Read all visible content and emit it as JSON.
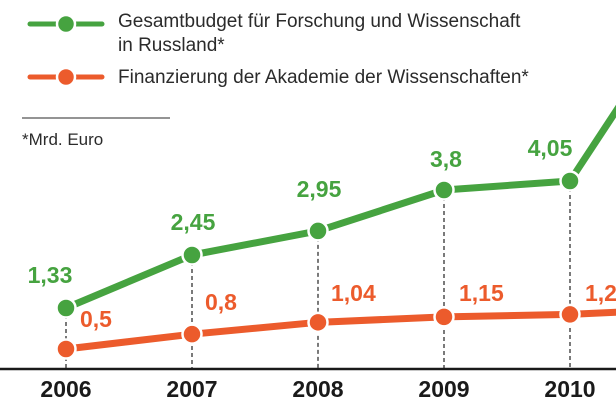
{
  "chart_data": {
    "type": "line",
    "unit_note": "*Mrd. Euro",
    "x": [
      "2006",
      "2007",
      "2008",
      "2009",
      "2010"
    ],
    "series": [
      {
        "name_lines": [
          "Gesamtbudget für Forschung und Wissenschaft",
          "in Russland*"
        ],
        "color": "#46a340",
        "values": [
          1.33,
          2.45,
          2.95,
          3.8,
          4.05
        ],
        "labels": [
          "1,33",
          "2,45",
          "2,95",
          "3,8",
          "4,05"
        ],
        "continues_after_last": true
      },
      {
        "name_lines": [
          "Finanzierung der Akademie der Wissenschaften*"
        ],
        "color": "#ec5b2c",
        "values": [
          0.5,
          0.8,
          1.04,
          1.15,
          1.2
        ],
        "labels": [
          "0,5",
          "0,8",
          "1,04",
          "1,15",
          "1,2"
        ],
        "continues_after_last": true
      }
    ],
    "grid": false,
    "legend": "top"
  }
}
